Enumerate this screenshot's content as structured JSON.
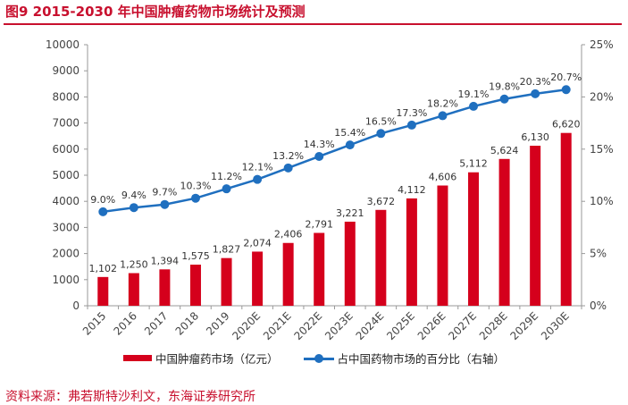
{
  "figure": {
    "title": "图9  2015-2030 年中国肿瘤药物市场统计及预测",
    "source": "资料来源：弗若斯特沙利文，东海证券研究所"
  },
  "colors": {
    "accent": "#c8102e",
    "bar": "#d5001c",
    "line": "#1f6fbf",
    "axis": "#999999"
  },
  "chart_data": {
    "type": "bar",
    "categories": [
      "2015",
      "2016",
      "2017",
      "2018",
      "2019",
      "2020E",
      "2021E",
      "2022E",
      "2023E",
      "2024E",
      "2025E",
      "2026E",
      "2027E",
      "2028E",
      "2029E",
      "2030E"
    ],
    "series": [
      {
        "name": "中国肿瘤药市场（亿元）",
        "type": "bar",
        "axis": "left",
        "values": [
          1102,
          1250,
          1394,
          1575,
          1827,
          2074,
          2406,
          2791,
          3221,
          3672,
          4112,
          4606,
          5112,
          5624,
          6130,
          6620
        ],
        "labels": [
          "1,102",
          "1,250",
          "1,394",
          "1,575",
          "1,827",
          "2,074",
          "2,406",
          "2,791",
          "3,221",
          "3,672",
          "4,112",
          "4,606",
          "5,112",
          "5,624",
          "6,130",
          "6,620"
        ]
      },
      {
        "name": "占中国药物市场的百分比（右轴）",
        "type": "line",
        "axis": "right",
        "values": [
          9.0,
          9.4,
          9.7,
          10.3,
          11.2,
          12.1,
          13.2,
          14.3,
          15.4,
          16.5,
          17.3,
          18.2,
          19.1,
          19.8,
          20.3,
          20.7
        ],
        "labels": [
          "9.0%",
          "9.4%",
          "9.7%",
          "10.3%",
          "11.2%",
          "12.1%",
          "13.2%",
          "14.3%",
          "15.4%",
          "16.5%",
          "17.3%",
          "18.2%",
          "19.1%",
          "19.8%",
          "20.3%",
          "20.7%"
        ]
      }
    ],
    "y_left": {
      "ylim": [
        0,
        10000
      ],
      "ticks": [
        "0",
        "1000",
        "2000",
        "3000",
        "4000",
        "5000",
        "6000",
        "7000",
        "8000",
        "9000",
        "10000"
      ]
    },
    "y_right": {
      "ylim": [
        0,
        25
      ],
      "ticks": [
        "0%",
        "5%",
        "10%",
        "15%",
        "20%",
        "25%"
      ]
    },
    "grid": false,
    "legend": "bottom"
  }
}
